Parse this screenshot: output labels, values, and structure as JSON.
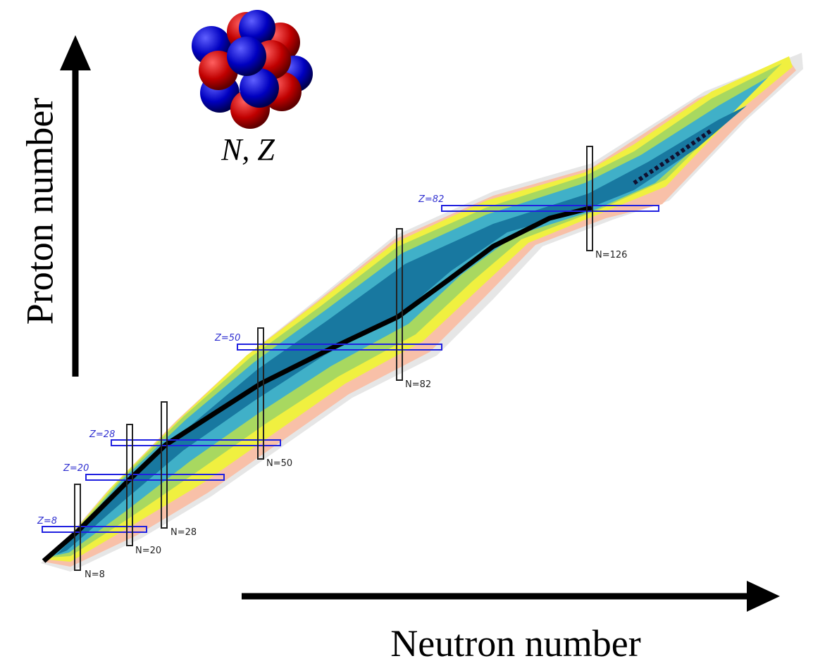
{
  "axes": {
    "y_label": "Proton number",
    "x_label": "Neutron number"
  },
  "nucleus_label": "N, Z",
  "magic_numbers": {
    "proton": [
      "Z=8",
      "Z=20",
      "Z=28",
      "Z=50",
      "Z=82"
    ],
    "neutron": [
      "N=8",
      "N=20",
      "N=28",
      "N=50",
      "N=82",
      "N=126"
    ]
  }
}
